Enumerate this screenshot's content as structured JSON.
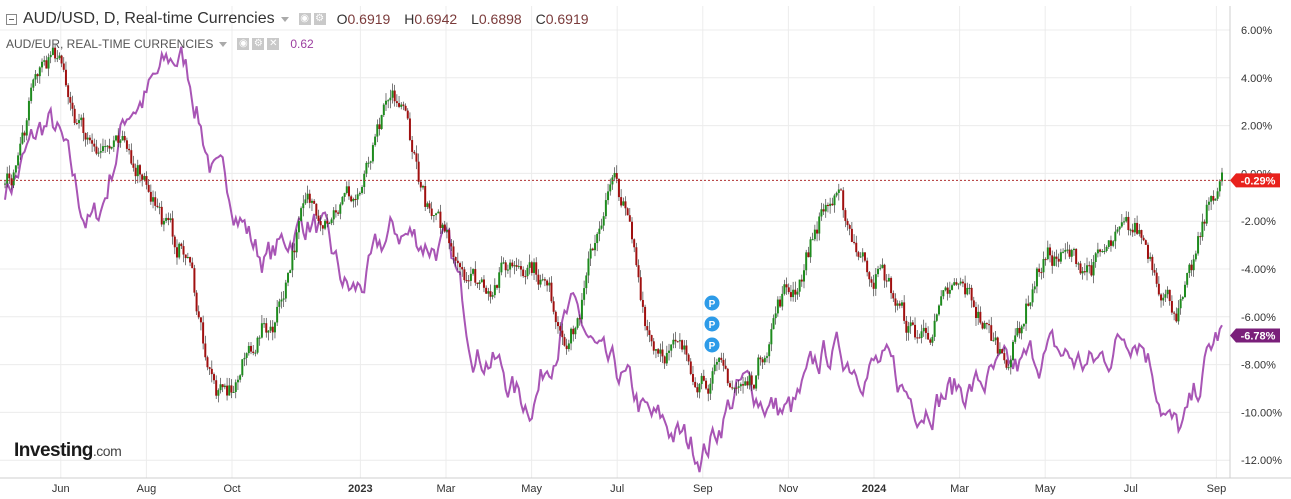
{
  "legend": {
    "main_title": "AUD/USD, D, Real-time Currencies",
    "ohlc": [
      {
        "label": "O",
        "value": "0.6919"
      },
      {
        "label": "H",
        "value": "0.6942"
      },
      {
        "label": "L",
        "value": "0.6898"
      },
      {
        "label": "C",
        "value": "0.6919"
      }
    ],
    "compare_title": "AUD/EUR, REAL-TIME CURRENCIES",
    "compare_value": "0.62"
  },
  "logo": {
    "brand": "Investing",
    "suffix": ".com"
  },
  "colors": {
    "up": "#1e8b1e",
    "down": "#a01010",
    "compare": "#a855b5",
    "current_line": "#b03030",
    "badge_main": "#e8211c",
    "badge_compare": "#7a1f7a",
    "marker": "#2d9be8"
  },
  "markers": {
    "label": "P",
    "count": 3
  },
  "chart_data": {
    "type": "line",
    "y_unit": "% change",
    "ylim": [
      -12.5,
      6.5
    ],
    "y_ticks": [
      "6.00%",
      "4.00%",
      "2.00%",
      "0.00%",
      "-2.00%",
      "-4.00%",
      "-6.00%",
      "-8.00%",
      "-10.00%",
      "-12.00%"
    ],
    "x_ticks": [
      "Jun",
      "Aug",
      "Oct",
      "2023",
      "Mar",
      "May",
      "Jul",
      "Sep",
      "Nov",
      "2024",
      "Mar",
      "May",
      "Jul",
      "Sep"
    ],
    "grid": true,
    "current_main": {
      "value": -0.29,
      "label": "-0.29%"
    },
    "current_compare": {
      "value": -6.78,
      "label": "-6.78%"
    },
    "series": [
      {
        "name": "AUD/USD, D, Real-time Currencies",
        "style": "candlestick",
        "months": [
          "2022-05",
          "2022-06",
          "2022-07",
          "2022-08",
          "2022-09",
          "2022-10",
          "2022-11",
          "2022-12",
          "2023-01",
          "2023-02",
          "2023-03",
          "2023-04",
          "2023-05",
          "2023-06",
          "2023-07",
          "2023-08",
          "2023-09",
          "2023-10",
          "2023-11",
          "2023-12",
          "2024-01",
          "2024-02",
          "2024-03",
          "2024-04",
          "2024-05",
          "2024-06",
          "2024-07",
          "2024-08",
          "2024-09"
        ],
        "values": [
          -0.5,
          4.8,
          1.5,
          0.5,
          -3.0,
          -9.5,
          -6.5,
          -1.5,
          -1.0,
          2.8,
          -2.5,
          -4.5,
          -3.5,
          -6.5,
          -0.6,
          -7.0,
          -8.2,
          -9.0,
          -5.0,
          -1.2,
          -4.0,
          -6.8,
          -5.0,
          -7.5,
          -3.5,
          -3.8,
          -2.5,
          -5.5,
          -0.29
        ]
      },
      {
        "name": "AUD/EUR, REAL-TIME CURRENCIES",
        "style": "line",
        "months": [
          "2022-05",
          "2022-06",
          "2022-07",
          "2022-08",
          "2022-09",
          "2022-10",
          "2022-11",
          "2022-12",
          "2023-01",
          "2023-02",
          "2023-03",
          "2023-04",
          "2023-05",
          "2023-06",
          "2023-07",
          "2023-08",
          "2023-09",
          "2023-10",
          "2023-11",
          "2023-12",
          "2024-01",
          "2024-02",
          "2024-03",
          "2024-04",
          "2024-05",
          "2024-06",
          "2024-07",
          "2024-08",
          "2024-09"
        ],
        "values": [
          -0.5,
          2.0,
          -2.0,
          3.0,
          4.8,
          -0.5,
          -3.5,
          -2.0,
          -5.0,
          -2.5,
          -3.0,
          -7.5,
          -9.5,
          -6.0,
          -8.5,
          -10.5,
          -11.5,
          -9.0,
          -10.0,
          -7.5,
          -8.0,
          -9.5,
          -9.0,
          -8.5,
          -7.5,
          -8.0,
          -6.5,
          -10.8,
          -6.78
        ]
      }
    ]
  }
}
